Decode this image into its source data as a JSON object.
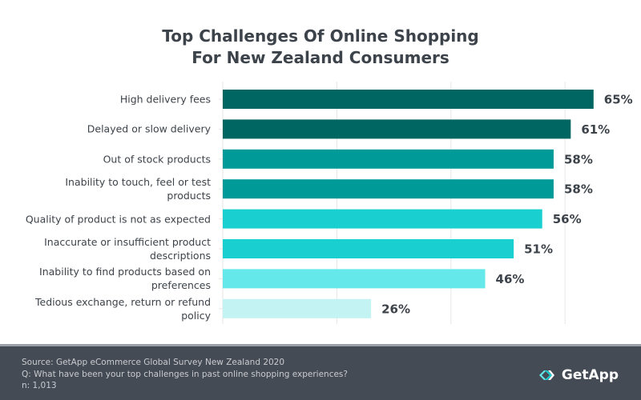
{
  "chart_data": {
    "type": "bar",
    "orientation": "horizontal",
    "title": "Top Challenges Of Online Shopping For New Zealand Consumers",
    "title_lines": [
      "Top Challenges Of Online Shopping",
      "For New Zealand Consumers"
    ],
    "categories": [
      "High delivery fees",
      "Delayed or slow delivery",
      "Out of stock products",
      "Inability to touch, feel or test products",
      "Quality of product is not as expected",
      "Inaccurate or insufficient product descriptions",
      "Inability to find products based on preferences",
      "Tedious exchange, return or refund policy"
    ],
    "category_lines": [
      [
        "High delivery fees"
      ],
      [
        "Delayed or slow delivery"
      ],
      [
        "Out of stock products"
      ],
      [
        "Inability to touch, feel or test",
        "products"
      ],
      [
        "Quality of product is not as expected"
      ],
      [
        "Inaccurate or insufficient product",
        "descriptions"
      ],
      [
        "Inability to find products based on",
        "preferences"
      ],
      [
        "Tedious exchange, return or refund",
        "policy"
      ]
    ],
    "values": [
      65,
      61,
      58,
      58,
      56,
      51,
      46,
      26
    ],
    "data_labels": [
      "65%",
      "61%",
      "58%",
      "58%",
      "56%",
      "51%",
      "46%",
      "26%"
    ],
    "bar_colors": [
      "#006662",
      "#006662",
      "#009b99",
      "#009b99",
      "#19cfd0",
      "#19cfd0",
      "#64e8ea",
      "#c3f3f2"
    ],
    "xlim": [
      0,
      80
    ],
    "grid": true,
    "gridlines": [
      0,
      20,
      40,
      60
    ]
  },
  "footer": {
    "source": "Source: GetApp eCommerce Global Survey New Zealand 2020",
    "question": "Q: What have been your top challenges in past online shopping experiences?",
    "n": "n: 1,013",
    "logo": "GetApp"
  }
}
